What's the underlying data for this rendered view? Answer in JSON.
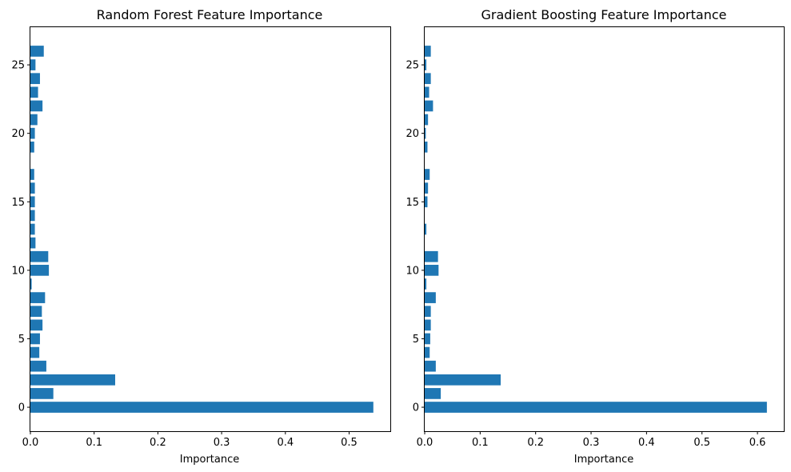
{
  "chart_data": [
    {
      "type": "bar",
      "orientation": "horizontal",
      "title": "Random Forest Feature Importance",
      "xlabel": "Importance",
      "ylabel": "",
      "categories": [
        0,
        1,
        2,
        3,
        4,
        5,
        6,
        7,
        8,
        9,
        10,
        11,
        12,
        13,
        14,
        15,
        16,
        17,
        18,
        19,
        20,
        21,
        22,
        23,
        24,
        25,
        26
      ],
      "values": [
        0.538,
        0.036,
        0.133,
        0.025,
        0.014,
        0.015,
        0.019,
        0.018,
        0.023,
        0.002,
        0.029,
        0.028,
        0.008,
        0.007,
        0.007,
        0.007,
        0.007,
        0.006,
        0.0,
        0.006,
        0.007,
        0.011,
        0.019,
        0.012,
        0.015,
        0.008,
        0.021
      ],
      "xlim": [
        0,
        0.5646
      ],
      "ylim": [
        -1.75,
        27.75
      ],
      "xticks": [
        0.0,
        0.1,
        0.2,
        0.3,
        0.4,
        0.5
      ],
      "xtick_labels": [
        "0.0",
        "0.1",
        "0.2",
        "0.3",
        "0.4",
        "0.5"
      ],
      "yticks": [
        0,
        5,
        10,
        15,
        20,
        25
      ],
      "ytick_labels": [
        "0",
        "5",
        "10",
        "15",
        "20",
        "25"
      ],
      "bar_color": "#1f77b4",
      "grid": false
    },
    {
      "type": "bar",
      "orientation": "horizontal",
      "title": "Gradient Boosting Feature Importance",
      "xlabel": "Importance",
      "ylabel": "",
      "categories": [
        0,
        1,
        2,
        3,
        4,
        5,
        6,
        7,
        8,
        9,
        10,
        11,
        12,
        13,
        14,
        15,
        16,
        17,
        18,
        19,
        20,
        21,
        22,
        23,
        24,
        25,
        26
      ],
      "values": [
        0.617,
        0.029,
        0.137,
        0.02,
        0.009,
        0.01,
        0.011,
        0.011,
        0.02,
        0.003,
        0.025,
        0.024,
        0.0,
        0.003,
        0.0,
        0.005,
        0.006,
        0.009,
        0.0,
        0.005,
        0.002,
        0.006,
        0.015,
        0.008,
        0.011,
        0.003,
        0.011
      ],
      "xlim": [
        0,
        0.6475
      ],
      "ylim": [
        -1.75,
        27.75
      ],
      "xticks": [
        0.0,
        0.1,
        0.2,
        0.3,
        0.4,
        0.5,
        0.6
      ],
      "xtick_labels": [
        "0.0",
        "0.1",
        "0.2",
        "0.3",
        "0.4",
        "0.5",
        "0.6"
      ],
      "yticks": [
        0,
        5,
        10,
        15,
        20,
        25
      ],
      "ytick_labels": [
        "0",
        "5",
        "10",
        "15",
        "20",
        "25"
      ],
      "bar_color": "#1f77b4",
      "grid": false
    }
  ]
}
